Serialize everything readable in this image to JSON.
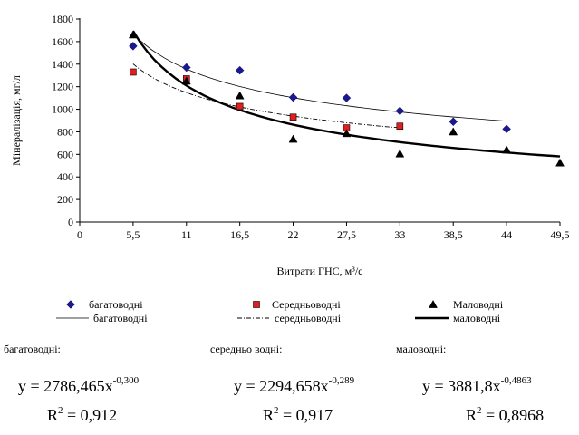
{
  "chart_data": {
    "type": "scatter",
    "xlabel": "Витрати ГНС, м³/с",
    "ylabel": "Мінералізація, мг/л",
    "xlim": [
      0,
      49.5
    ],
    "ylim": [
      0,
      1800
    ],
    "x_ticks": [
      "0",
      "5,5",
      "11",
      "16,5",
      "22",
      "27,5",
      "33",
      "38,5",
      "44",
      "49,5"
    ],
    "y_ticks": [
      "0",
      "200",
      "400",
      "600",
      "800",
      "1000",
      "1200",
      "1400",
      "1600",
      "1800"
    ],
    "grid": false,
    "legend_position": "bottom",
    "series": [
      {
        "name": "багатоводні",
        "marker": "diamond",
        "color": "#1a1a8c",
        "x": [
          5.5,
          11,
          16.5,
          22,
          27.5,
          33,
          38.5,
          44
        ],
        "y": [
          1560,
          1370,
          1345,
          1105,
          1100,
          985,
          890,
          825
        ]
      },
      {
        "name": "Середньоводні",
        "marker": "square",
        "color": "#e02020",
        "x": [
          5.5,
          11,
          16.5,
          22,
          27.5,
          33
        ],
        "y": [
          1330,
          1270,
          1025,
          930,
          835,
          850
        ]
      },
      {
        "name": "Маловодні",
        "marker": "triangle",
        "color": "#000000",
        "x": [
          5.5,
          11,
          16.5,
          22,
          27.5,
          33,
          38.5,
          44,
          49.5
        ],
        "y": [
          1660,
          1250,
          1120,
          735,
          785,
          605,
          800,
          640,
          525
        ]
      }
    ],
    "trendlines": [
      {
        "name": "багатоводні",
        "a": 2786.465,
        "b": -0.3,
        "x_range": [
          5.5,
          44
        ],
        "style": "thin"
      },
      {
        "name": "середньоводні",
        "a": 2294.658,
        "b": -0.289,
        "x_range": [
          5.5,
          33
        ],
        "style": "dashdot"
      },
      {
        "name": "маловодні",
        "a": 3881.8,
        "b": -0.4863,
        "x_range": [
          5.5,
          49.5
        ],
        "style": "thick"
      }
    ]
  },
  "captions": {
    "bagato": "багатоводні:",
    "seredno": "середньо водні:",
    "malo": "маловодні:"
  },
  "equations": {
    "bagato": {
      "base": "y = 2786,465x",
      "exp": "-0,300",
      "r2_lhs": "R",
      "r2_sup": "2",
      "r2_rhs": " = 0,912"
    },
    "seredno": {
      "base": "y = 2294,658x",
      "exp": "-0,289",
      "r2_lhs": "R",
      "r2_sup": "2",
      "r2_rhs": " = 0,917"
    },
    "malo": {
      "base": "y = 3881,8x",
      "exp": "-0,4863",
      "r2_lhs": "R",
      "r2_sup": "2",
      "r2_rhs": " = 0,8968"
    }
  }
}
